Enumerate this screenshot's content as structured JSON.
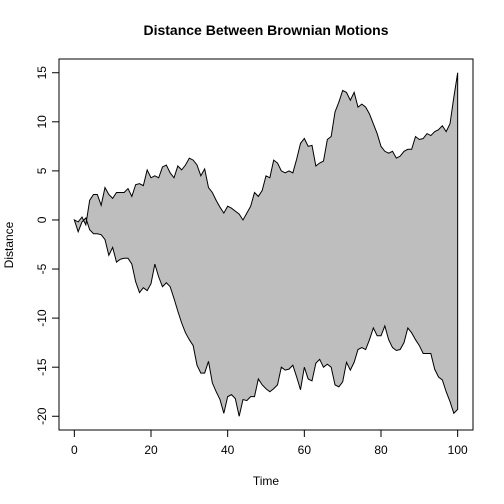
{
  "chart_data": {
    "type": "area",
    "title": "Distance Between Brownian Motions",
    "xlabel": "Time",
    "ylabel": "Distance",
    "fill": "#bebebe",
    "stroke": "#000000",
    "x": [
      0,
      1,
      2,
      3,
      4,
      5,
      6,
      7,
      8,
      9,
      10,
      11,
      12,
      13,
      14,
      15,
      16,
      17,
      18,
      19,
      20,
      21,
      22,
      23,
      24,
      25,
      26,
      27,
      28,
      29,
      30,
      31,
      32,
      33,
      34,
      35,
      36,
      37,
      38,
      39,
      40,
      41,
      42,
      43,
      44,
      45,
      46,
      47,
      48,
      49,
      50,
      51,
      52,
      53,
      54,
      55,
      56,
      57,
      58,
      59,
      60,
      61,
      62,
      63,
      64,
      65,
      66,
      67,
      68,
      69,
      70,
      71,
      72,
      73,
      74,
      75,
      76,
      77,
      78,
      79,
      80,
      81,
      82,
      83,
      84,
      85,
      86,
      87,
      88,
      89,
      90,
      91,
      92,
      93,
      94,
      95,
      96,
      97,
      98,
      99,
      100
    ],
    "series": [
      {
        "values": [
          0,
          -0.2,
          0.3,
          -0.5,
          2,
          2.6,
          2.6,
          1.5,
          3.3,
          2.6,
          2.2,
          2.8,
          2.8,
          2.8,
          3.2,
          2.4,
          3.6,
          3.7,
          3.5,
          5.1,
          4.3,
          4.5,
          4.3,
          5.4,
          5.6,
          4.8,
          4.3,
          5.5,
          5.1,
          5.6,
          6.3,
          6.1,
          5.6,
          4.5,
          5.2,
          3.3,
          2.8,
          2.0,
          1.3,
          0.7,
          1.4,
          1.2,
          0.9,
          0.6,
          0.0,
          0.7,
          1.4,
          2.8,
          2.4,
          3.0,
          4.5,
          4.3,
          6.1,
          5.8,
          5.0,
          4.8,
          5.0,
          4.8,
          6.2,
          7.8,
          8.3,
          7.5,
          7.6,
          5.5,
          5.8,
          6.0,
          8.2,
          8.5,
          11.0,
          12.0,
          13.2,
          13.0,
          12.2,
          13.0,
          11.5,
          11.8,
          11.5,
          10.8,
          9.8,
          8.8,
          7.5,
          7.0,
          6.8,
          7.0,
          6.3,
          6.5,
          7.0,
          7.2,
          7.2,
          8.5,
          8.2,
          8.3,
          8.8,
          8.6,
          9.0,
          9.2,
          9.6,
          9.0,
          9.8,
          12.5,
          15.0
        ]
      },
      {
        "values": [
          0,
          -1.2,
          -0.2,
          0.2,
          -1.0,
          -1.4,
          -1.4,
          -1.5,
          -2.0,
          -3.6,
          -2.8,
          -4.3,
          -4.0,
          -3.9,
          -3.9,
          -4.5,
          -6.3,
          -7.4,
          -6.9,
          -7.2,
          -6.5,
          -4.5,
          -5.8,
          -6.8,
          -6.4,
          -6.8,
          -8.0,
          -9.3,
          -10.5,
          -11.5,
          -12.2,
          -12.8,
          -14.8,
          -15.6,
          -15.6,
          -14.4,
          -16.6,
          -17.5,
          -18.3,
          -19.7,
          -18.0,
          -17.8,
          -18.2,
          -20.0,
          -18.3,
          -18.4,
          -18.0,
          -18.0,
          -16.2,
          -16.8,
          -17.2,
          -17.5,
          -17.2,
          -16.8,
          -15.0,
          -15.3,
          -15.2,
          -14.8,
          -16.0,
          -17.3,
          -15.0,
          -16.2,
          -16.4,
          -14.6,
          -14.2,
          -15.0,
          -14.7,
          -15.0,
          -16.8,
          -17.0,
          -16.5,
          -14.5,
          -15.3,
          -14.5,
          -13.2,
          -13.0,
          -13.2,
          -12.2,
          -11.0,
          -11.8,
          -11.8,
          -10.8,
          -12.2,
          -13.0,
          -13.3,
          -13.2,
          -12.5,
          -11.0,
          -11.5,
          -12.2,
          -12.8,
          -13.6,
          -13.6,
          -13.6,
          -15.2,
          -16.0,
          -16.3,
          -17.5,
          -18.5,
          -19.7,
          -19.3
        ]
      }
    ],
    "xlim": [
      -4,
      104
    ],
    "ylim": [
      -21.4,
      16.4
    ],
    "xticks": [
      0,
      20,
      40,
      60,
      80,
      100
    ],
    "yticks": [
      -20,
      -15,
      -10,
      -5,
      0,
      5,
      10,
      15
    ]
  }
}
